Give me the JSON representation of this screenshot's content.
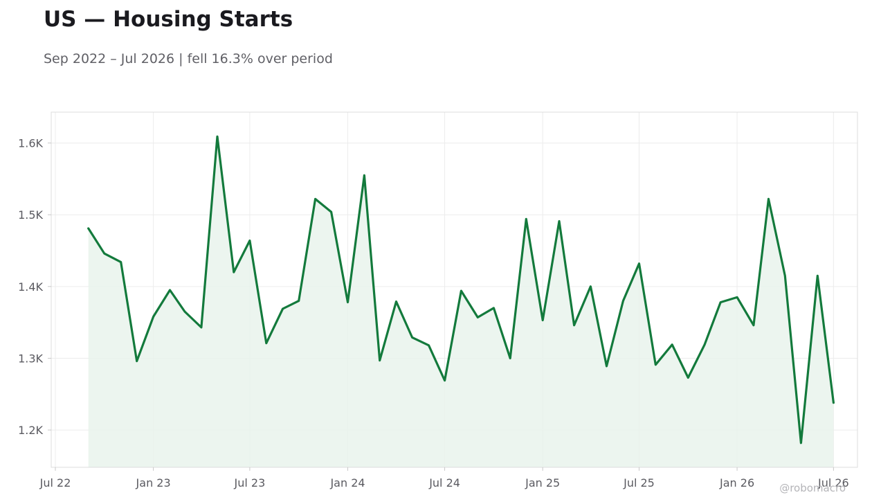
{
  "header": {
    "title": "US — Housing Starts",
    "subtitle": "Sep 2022 – Jul 2026 | fell 16.3% over period"
  },
  "credit": "@robomacro",
  "colors": {
    "line": "#137a3c",
    "fill": "#e9f3ec",
    "grid": "#ececec",
    "frame": "#dcdcdc"
  },
  "chart_data": {
    "type": "area",
    "title": "US — Housing Starts",
    "subtitle": "Sep 2022 – Jul 2026 | fell 16.3% over period",
    "xlabel": "",
    "ylabel": "",
    "grid": true,
    "legend": "none",
    "xlim": [
      "2022-07-01",
      "2026-08-15"
    ],
    "ylim": [
      1148,
      1643
    ],
    "x_ticks": [
      {
        "date": "2022-07-01",
        "label": "Jul 22"
      },
      {
        "date": "2023-01-01",
        "label": "Jan 23"
      },
      {
        "date": "2023-07-01",
        "label": "Jul 23"
      },
      {
        "date": "2024-01-01",
        "label": "Jan 24"
      },
      {
        "date": "2024-07-01",
        "label": "Jul 24"
      },
      {
        "date": "2025-01-01",
        "label": "Jan 25"
      },
      {
        "date": "2025-07-01",
        "label": "Jul 25"
      },
      {
        "date": "2026-01-01",
        "label": "Jan 26"
      },
      {
        "date": "2026-07-01",
        "label": "Jul 26"
      }
    ],
    "y_ticks": [
      {
        "value": 1200,
        "label": "1.2K"
      },
      {
        "value": 1300,
        "label": "1.3K"
      },
      {
        "value": 1400,
        "label": "1.4K"
      },
      {
        "value": 1500,
        "label": "1.5K"
      },
      {
        "value": 1600,
        "label": "1.6K"
      }
    ],
    "series": [
      {
        "x": [
          "2022-09-01",
          "2022-10-01",
          "2022-11-01",
          "2022-12-01",
          "2023-01-01",
          "2023-02-01",
          "2023-03-01",
          "2023-04-01",
          "2023-05-01",
          "2023-06-01",
          "2023-07-01",
          "2023-08-01",
          "2023-09-01",
          "2023-10-01",
          "2023-11-01",
          "2023-12-01",
          "2024-01-01",
          "2024-02-01",
          "2024-03-01",
          "2024-04-01",
          "2024-05-01",
          "2024-06-01",
          "2024-07-01",
          "2024-08-01",
          "2024-09-01",
          "2024-10-01",
          "2024-11-01",
          "2024-12-01",
          "2025-01-01",
          "2025-02-01",
          "2025-03-01",
          "2025-04-01",
          "2025-05-01",
          "2025-06-01",
          "2025-07-01",
          "2025-08-01",
          "2025-09-01",
          "2025-10-01",
          "2025-11-01",
          "2025-12-01",
          "2026-01-01",
          "2026-02-01",
          "2026-03-01",
          "2026-04-01",
          "2026-05-01",
          "2026-06-01",
          "2026-07-01"
        ],
        "values": [
          1481,
          1446,
          1434,
          1296,
          1358,
          1395,
          1365,
          1343,
          1609,
          1420,
          1464,
          1321,
          1369,
          1380,
          1522,
          1504,
          1378,
          1555,
          1297,
          1379,
          1329,
          1318,
          1269,
          1394,
          1357,
          1370,
          1300,
          1494,
          1353,
          1491,
          1346,
          1400,
          1289,
          1380,
          1432,
          1291,
          1319,
          1273,
          1319,
          1378,
          1385,
          1346,
          1522,
          1415,
          1182,
          1415,
          1238
        ]
      }
    ]
  }
}
